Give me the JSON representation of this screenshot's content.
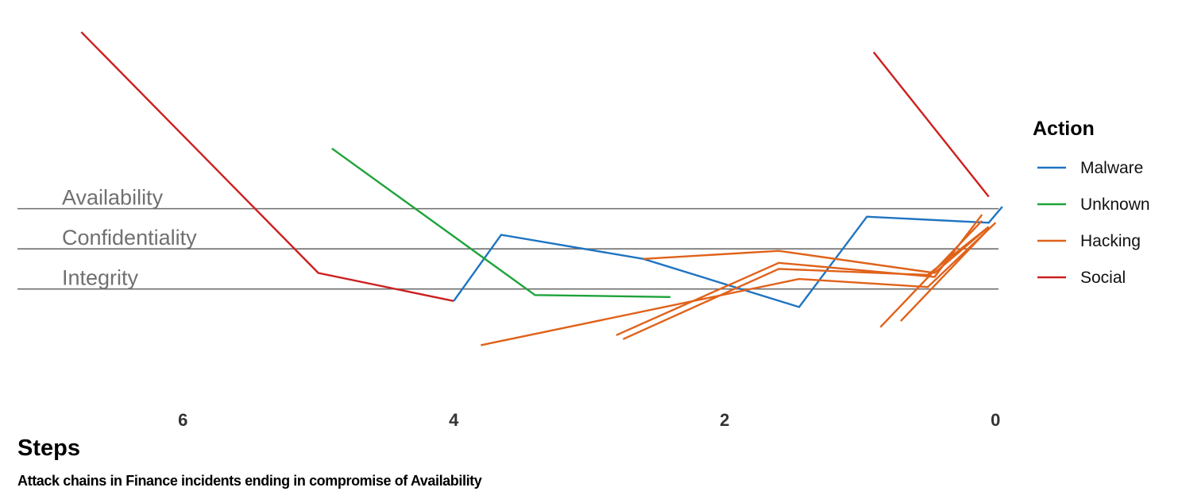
{
  "chart_data": {
    "type": "line",
    "caption": "Attack chains in Finance incidents ending in compromise of Availability",
    "xlabel": "Steps",
    "x_ticks": [
      "6",
      "4",
      "2",
      "0"
    ],
    "x_tick_values": [
      6,
      4,
      2,
      0
    ],
    "xlim": [
      7.35,
      -0.45
    ],
    "xaxis_reversed": true,
    "y_categories": [
      "Availability",
      "Confidentiality",
      "Integrity"
    ],
    "y_category_values": [
      3,
      2,
      1
    ],
    "ylim": [
      -1.5,
      8
    ],
    "legend": {
      "title": "Action",
      "position": "right",
      "entries": [
        {
          "name": "Malware",
          "color": "#1f74c1"
        },
        {
          "name": "Unknown",
          "color": "#1ea33a"
        },
        {
          "name": "Hacking",
          "color": "#e0621a"
        },
        {
          "name": "Social",
          "color": "#cc2020"
        }
      ]
    },
    "series": [
      {
        "action": "Social",
        "color": "#cc2020",
        "points": [
          [
            6.75,
            7.4
          ],
          [
            5.0,
            1.4
          ],
          [
            4.0,
            0.7
          ]
        ]
      },
      {
        "action": "Malware",
        "color": "#1f74c1",
        "points": [
          [
            4.0,
            0.7
          ],
          [
            3.65,
            2.35
          ],
          [
            2.6,
            1.75
          ],
          [
            1.45,
            0.55
          ],
          [
            0.95,
            2.8
          ],
          [
            0.05,
            2.65
          ],
          [
            -0.05,
            3.05
          ]
        ]
      },
      {
        "action": "Unknown",
        "color": "#1ea33a",
        "points": [
          [
            4.9,
            4.5
          ],
          [
            3.4,
            0.85
          ],
          [
            2.4,
            0.8
          ]
        ]
      },
      {
        "action": "Hacking",
        "color": "#e0621a",
        "points": [
          [
            2.6,
            1.75
          ],
          [
            1.6,
            1.95
          ],
          [
            0.45,
            1.4
          ],
          [
            0.05,
            2.55
          ]
        ]
      },
      {
        "action": "Hacking",
        "color": "#e0621a",
        "points": [
          [
            3.8,
            -0.4
          ],
          [
            1.45,
            1.25
          ],
          [
            0.5,
            1.05
          ],
          [
            0.0,
            2.65
          ]
        ]
      },
      {
        "action": "Hacking",
        "color": "#e0621a",
        "points": [
          [
            2.8,
            -0.15
          ],
          [
            1.6,
            1.65
          ],
          [
            0.45,
            1.3
          ],
          [
            0.1,
            2.85
          ]
        ]
      },
      {
        "action": "Hacking",
        "color": "#e0621a",
        "points": [
          [
            2.75,
            -0.25
          ],
          [
            1.6,
            1.5
          ],
          [
            0.5,
            1.35
          ],
          [
            0.05,
            2.55
          ]
        ]
      },
      {
        "action": "Hacking",
        "color": "#e0621a",
        "points": [
          [
            0.85,
            0.05
          ],
          [
            0.1,
            2.7
          ]
        ]
      },
      {
        "action": "Hacking",
        "color": "#e0621a",
        "points": [
          [
            0.7,
            0.2
          ],
          [
            0.05,
            2.5
          ]
        ]
      },
      {
        "action": "Social",
        "color": "#cc2020",
        "points": [
          [
            0.9,
            6.9
          ],
          [
            0.05,
            3.3
          ]
        ]
      }
    ]
  }
}
